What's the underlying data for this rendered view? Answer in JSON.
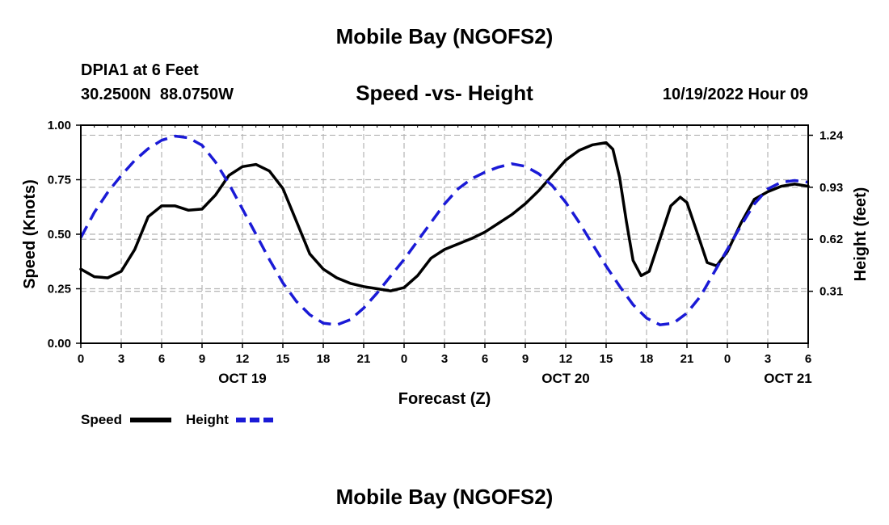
{
  "chart_data": {
    "type": "line",
    "title": "Mobile Bay (NGOFS2)",
    "subtitle": "Speed -vs- Height",
    "station": "DPIA1 at 6 Feet",
    "coords": "30.2500N  88.0750W",
    "timestamp": "10/19/2022 Hour 09",
    "xlabel": "Forecast (Z)",
    "ylabel_left": "Speed (Knots)",
    "ylabel_right": "Height (feet)",
    "ylim_left": [
      0,
      1
    ],
    "ylim_right": [
      0,
      1.3
    ],
    "left_ticks": [
      0,
      0.25,
      0.5,
      0.75,
      1
    ],
    "left_tick_labels": [
      "0.00",
      "0.25",
      "0.50",
      "0.75",
      "1.00"
    ],
    "right_ticks": [
      0.31,
      0.62,
      0.93,
      1.24
    ],
    "right_tick_labels": [
      "0.31",
      "0.62",
      "0.93",
      "1.24"
    ],
    "x_hours": [
      0,
      3,
      6,
      9,
      12,
      15,
      18,
      21,
      24,
      27,
      30,
      33,
      36,
      39,
      42,
      45,
      48,
      51,
      54
    ],
    "x_tick_labels": [
      "0",
      "3",
      "6",
      "9",
      "12",
      "15",
      "18",
      "21",
      "0",
      "3",
      "6",
      "9",
      "12",
      "15",
      "18",
      "21",
      "0",
      "3",
      "6"
    ],
    "date_labels": [
      {
        "hour": 12,
        "label": "OCT 19"
      },
      {
        "hour": 36,
        "label": "OCT 20"
      },
      {
        "hour": 52.5,
        "label": "OCT 21"
      }
    ],
    "grid": true,
    "legend_position": "bottom-left",
    "series": [
      {
        "name": "Speed",
        "axis": "left",
        "color": "#000000",
        "style": "solid",
        "points": [
          [
            0,
            0.34
          ],
          [
            1,
            0.305
          ],
          [
            2,
            0.3
          ],
          [
            3,
            0.33
          ],
          [
            4,
            0.43
          ],
          [
            5,
            0.58
          ],
          [
            6,
            0.63
          ],
          [
            7,
            0.63
          ],
          [
            8,
            0.61
          ],
          [
            9,
            0.615
          ],
          [
            10,
            0.68
          ],
          [
            11,
            0.77
          ],
          [
            12,
            0.81
          ],
          [
            13,
            0.82
          ],
          [
            14,
            0.79
          ],
          [
            15,
            0.71
          ],
          [
            16,
            0.56
          ],
          [
            17,
            0.41
          ],
          [
            18,
            0.34
          ],
          [
            19,
            0.3
          ],
          [
            20,
            0.275
          ],
          [
            21,
            0.26
          ],
          [
            22,
            0.25
          ],
          [
            23,
            0.24
          ],
          [
            24,
            0.255
          ],
          [
            25,
            0.31
          ],
          [
            26,
            0.39
          ],
          [
            27,
            0.43
          ],
          [
            28,
            0.455
          ],
          [
            29,
            0.48
          ],
          [
            30,
            0.51
          ],
          [
            31,
            0.55
          ],
          [
            32,
            0.59
          ],
          [
            33,
            0.64
          ],
          [
            34,
            0.7
          ],
          [
            35,
            0.77
          ],
          [
            36,
            0.84
          ],
          [
            37,
            0.885
          ],
          [
            38,
            0.91
          ],
          [
            39,
            0.92
          ],
          [
            39.5,
            0.89
          ],
          [
            40,
            0.76
          ],
          [
            40.5,
            0.56
          ],
          [
            41,
            0.38
          ],
          [
            41.6,
            0.31
          ],
          [
            42.2,
            0.33
          ],
          [
            43,
            0.48
          ],
          [
            43.8,
            0.63
          ],
          [
            44.5,
            0.67
          ],
          [
            45,
            0.645
          ],
          [
            45.8,
            0.5
          ],
          [
            46.5,
            0.37
          ],
          [
            47.2,
            0.355
          ],
          [
            48,
            0.42
          ],
          [
            49,
            0.55
          ],
          [
            50,
            0.66
          ],
          [
            51,
            0.695
          ],
          [
            52,
            0.72
          ],
          [
            53,
            0.73
          ],
          [
            54,
            0.72
          ]
        ]
      },
      {
        "name": "Height",
        "axis": "right",
        "color": "#1a1ad6",
        "style": "dashed",
        "points": [
          [
            0,
            0.63
          ],
          [
            1,
            0.78
          ],
          [
            2,
            0.9
          ],
          [
            3,
            1.0
          ],
          [
            4,
            1.09
          ],
          [
            5,
            1.16
          ],
          [
            6,
            1.21
          ],
          [
            7,
            1.235
          ],
          [
            8,
            1.225
          ],
          [
            9,
            1.18
          ],
          [
            10,
            1.08
          ],
          [
            11,
            0.95
          ],
          [
            12,
            0.8
          ],
          [
            13,
            0.65
          ],
          [
            14,
            0.5
          ],
          [
            15,
            0.36
          ],
          [
            16,
            0.25
          ],
          [
            17,
            0.17
          ],
          [
            18,
            0.12
          ],
          [
            19,
            0.11
          ],
          [
            20,
            0.14
          ],
          [
            21,
            0.21
          ],
          [
            22,
            0.3
          ],
          [
            23,
            0.4
          ],
          [
            24,
            0.5
          ],
          [
            25,
            0.61
          ],
          [
            26,
            0.72
          ],
          [
            27,
            0.83
          ],
          [
            28,
            0.92
          ],
          [
            29,
            0.98
          ],
          [
            30,
            1.02
          ],
          [
            31,
            1.05
          ],
          [
            32,
            1.07
          ],
          [
            33,
            1.055
          ],
          [
            34,
            1.01
          ],
          [
            35,
            0.94
          ],
          [
            36,
            0.84
          ],
          [
            37,
            0.72
          ],
          [
            38,
            0.59
          ],
          [
            39,
            0.46
          ],
          [
            40,
            0.34
          ],
          [
            41,
            0.23
          ],
          [
            42,
            0.15
          ],
          [
            43,
            0.11
          ],
          [
            44,
            0.12
          ],
          [
            45,
            0.18
          ],
          [
            46,
            0.28
          ],
          [
            47,
            0.42
          ],
          [
            48,
            0.56
          ],
          [
            49,
            0.7
          ],
          [
            50,
            0.83
          ],
          [
            51,
            0.92
          ],
          [
            52,
            0.96
          ],
          [
            53,
            0.97
          ],
          [
            54,
            0.96
          ]
        ]
      }
    ]
  },
  "legend": {
    "speed_label": "Speed",
    "height_label": "Height"
  },
  "footer": {
    "title": "Mobile Bay (NGOFS2)"
  }
}
